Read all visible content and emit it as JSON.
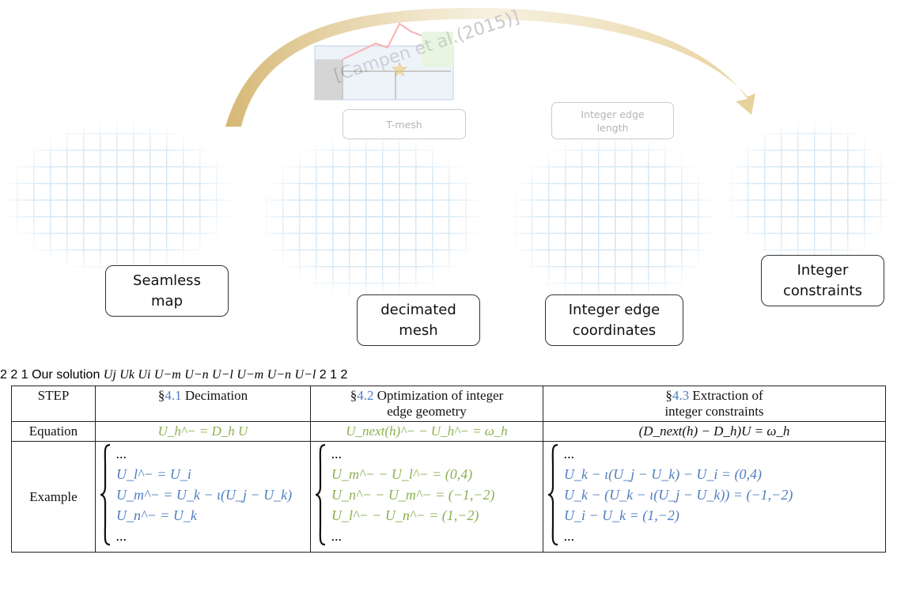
{
  "figure": {
    "top_arc_label": "[Campen et al.(2015)]",
    "bottom_arc_label": "Our solution",
    "faded_boxes": {
      "tmesh": "T-mesh",
      "integer_len_1": "Integer edge",
      "integer_len_2": "length"
    },
    "faded_numbers": {
      "a": "2",
      "b": "2",
      "c": "1"
    },
    "boxes": {
      "seamless_1": "Seamless",
      "seamless_2": "map",
      "decimated_1": "decimated",
      "decimated_2": "mesh",
      "intedge_1": "Integer edge",
      "intedge_2": "coordinates",
      "intcons_1": "Integer",
      "intcons_2": "constraints"
    },
    "labels": {
      "uj": "U",
      "uj_sub": "j",
      "uk": "U",
      "uk_sub": "k",
      "ui": "U",
      "ui_sub": "i",
      "um": "U",
      "um_sub": "m",
      "um_sup": "−",
      "un": "U",
      "un_sub": "n",
      "un_sup": "−",
      "ul": "U",
      "ul_sub": "l",
      "ul_sup": "−"
    },
    "result_numbers": {
      "a": "2",
      "b": "1",
      "c": "2"
    },
    "colors": {
      "red_edge": "#e8261f",
      "blue_edge": "#4f7ec0",
      "green_label": "#7cb33b",
      "orange_arrow": "#f0b47a"
    }
  },
  "table": {
    "header": {
      "step": "STEP",
      "col1_sec": "§",
      "col1_ref": "4.1",
      "col1_text": " Decimation",
      "col2_sec": "§",
      "col2_ref": "4.2",
      "col2_text_1": " Optimization of integer",
      "col2_text_2": "edge geometry",
      "col3_sec": "§",
      "col3_ref": "4.3",
      "col3_text_1": " Extraction of",
      "col3_text_2": "integer constraints"
    },
    "equation": {
      "label": "Equation",
      "col1": "U_h^− = D_h U",
      "col2": "U_next(h)^− − U_h^− = ω_h",
      "col3": "(D_next(h) − D_h)U = ω_h"
    },
    "example": {
      "label": "Example",
      "col1": [
        "...",
        "U_l^− = U_i",
        "U_m^− = U_k − ι(U_j − U_k)",
        "U_n^− = U_k",
        "..."
      ],
      "col2": [
        "...",
        "U_m^− − U_l^− = (0,4)",
        "U_n^− − U_m^− = (−1,−2)",
        "U_l^− − U_n^− = (1,−2)",
        "..."
      ],
      "col3": [
        "...",
        "U_k − ι(U_j − U_k) − U_i = (0,4)",
        "U_k − (U_k − ι(U_j − U_k)) = (−1,−2)",
        "U_i − U_k = (1,−2)",
        "..."
      ]
    }
  }
}
